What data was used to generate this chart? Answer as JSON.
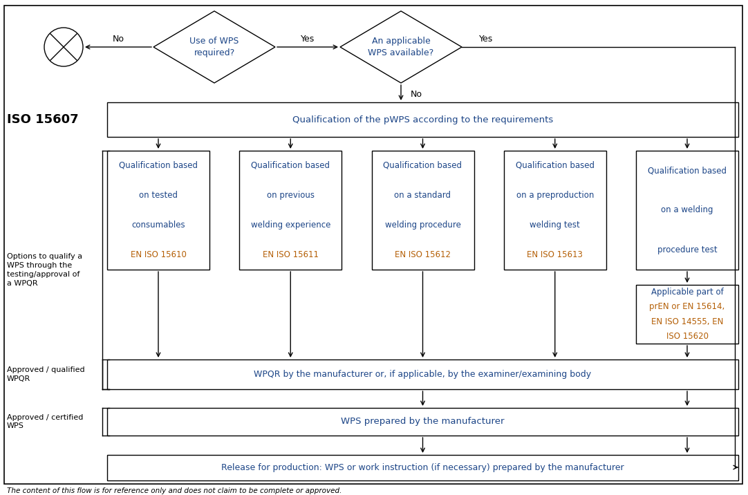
{
  "bg_color": "#ffffff",
  "border_color": "#000000",
  "text_color_black": "#000000",
  "text_color_blue": "#1c4587",
  "text_color_orange": "#b45f06",
  "footnote": "The content of this flow is for reference only and does not claim to be complete or approved.",
  "iso_label": "ISO 15607",
  "approved_qualified_label": "Approved / qualified\nWPQR",
  "approved_certified_label": "Approved / certified\nWPS",
  "options_label": "Options to qualify a\nWPS through the\ntesting/approval of\na WPQR",
  "diamond1_text": "Use of WPS\nrequired?",
  "diamond2_text": "An applicable\nWPS available?",
  "box_main": "Qualification of the pWPS according to the requirements",
  "box1_lines": [
    "Qualification based",
    "on tested",
    "consumables",
    "EN ISO 15610"
  ],
  "box2_lines": [
    "Qualification based",
    "on previous",
    "welding experience",
    "EN ISO 15611"
  ],
  "box3_lines": [
    "Qualification based",
    "on a standard",
    "welding procedure",
    "EN ISO 15612"
  ],
  "box4_lines": [
    "Qualification based",
    "on a preproduction",
    "welding test",
    "EN ISO 15613"
  ],
  "box5_lines": [
    "Qualification based",
    "on a welding",
    "procedure test"
  ],
  "box6_lines": [
    "Applicable part of",
    "prEN or EN 15614,",
    "EN ISO 14555, EN",
    "ISO 15620"
  ],
  "box_wpqr": "WPQR by the manufacturer or, if applicable, by the examiner/examining body",
  "box_wps": "WPS prepared by the manufacturer",
  "box_release": "Release for production: WPS or work instruction (if necessary) prepared by the manufacturer",
  "label_no1": "No",
  "label_yes1": "Yes",
  "label_yes2": "Yes",
  "label_no2": "No"
}
